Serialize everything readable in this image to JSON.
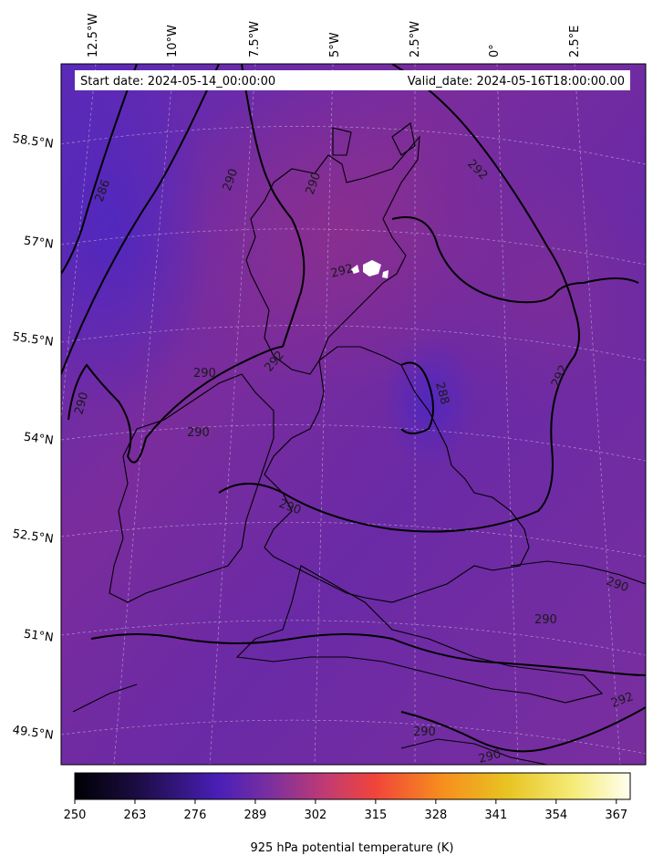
{
  "header": {
    "start_date": "Start date: 2024-05-14_00:00:00",
    "valid_date": "Valid_date: 2024-05-16T18:00:00.00"
  },
  "map": {
    "top_lon_labels": [
      "12.5°W",
      "10°W",
      "7.5°W",
      "5°W",
      "2.5°W",
      "0°",
      "2.5°E"
    ],
    "left_lat_labels": [
      "58.5°N",
      "57°N",
      "55.5°N",
      "54°N",
      "52.5°N",
      "51°N",
      "49.5°N"
    ],
    "contour_labels": [
      "286",
      "290",
      "290",
      "292",
      "292",
      "292",
      "290",
      "292",
      "288",
      "290",
      "290",
      "290",
      "290",
      "290",
      "290",
      "292",
      "290"
    ],
    "fill_color": "#7a2fa0",
    "contour_color": "#000000"
  },
  "colorbar": {
    "ticks": [
      "250",
      "263",
      "276",
      "289",
      "302",
      "315",
      "328",
      "341",
      "354",
      "367"
    ],
    "label": "925 hPa potential temperature (K)",
    "colormap": [
      "#000004",
      "#1b0c41",
      "#4a1fb8",
      "#7a2fa0",
      "#c63c6f",
      "#f0443a",
      "#f78d1e",
      "#e8c422",
      "#f5ec7a",
      "#fffff0"
    ]
  }
}
